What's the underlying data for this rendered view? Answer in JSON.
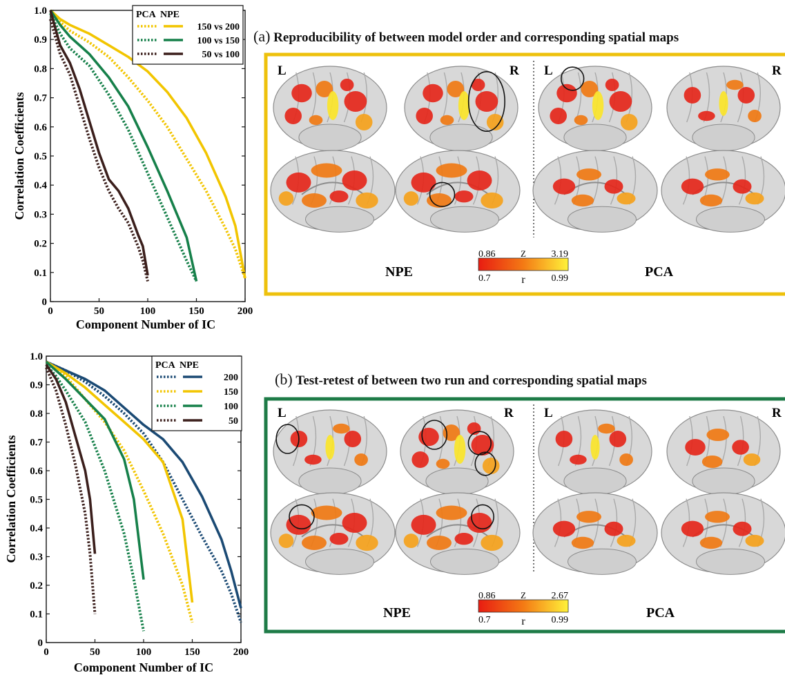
{
  "colors": {
    "yellow": "#f2c500",
    "green": "#16804a",
    "dark": "#3b1f1c",
    "navy": "#1b4a74",
    "frame_a": "#eec10c",
    "frame_b": "#1e7b47",
    "hot_low": "#e81c12",
    "hot_high": "#fff23a"
  },
  "chart_data": [
    {
      "type": "line",
      "xlabel": "Component Number of IC",
      "ylabel": "Correlation Coefficients",
      "xlim": [
        0,
        200
      ],
      "ylim": [
        0,
        1.0
      ],
      "x_ticks": [
        "0",
        "50",
        "100",
        "150",
        "200"
      ],
      "y_ticks": [
        "0",
        "0.1",
        "0.2",
        "0.3",
        "0.4",
        "0.5",
        "0.6",
        "0.7",
        "0.8",
        "0.9",
        "1.0"
      ],
      "legend_headers": [
        "PCA",
        "NPE"
      ],
      "legend_position": "top-right",
      "series": [
        {
          "name": "150 vs 200",
          "method": "NPE",
          "color": "yellow",
          "style": "solid",
          "x": [
            0,
            10,
            20,
            40,
            60,
            80,
            100,
            120,
            140,
            160,
            180,
            190,
            200
          ],
          "y": [
            1.0,
            0.97,
            0.95,
            0.92,
            0.88,
            0.84,
            0.79,
            0.72,
            0.63,
            0.51,
            0.36,
            0.26,
            0.08
          ]
        },
        {
          "name": "150 vs 200",
          "method": "PCA",
          "color": "yellow",
          "style": "dotted",
          "x": [
            0,
            10,
            20,
            40,
            60,
            80,
            100,
            120,
            140,
            160,
            180,
            190,
            200
          ],
          "y": [
            1.0,
            0.96,
            0.93,
            0.89,
            0.84,
            0.77,
            0.69,
            0.6,
            0.49,
            0.38,
            0.25,
            0.18,
            0.08
          ]
        },
        {
          "name": "100 vs 150",
          "method": "NPE",
          "color": "green",
          "style": "solid",
          "x": [
            0,
            10,
            20,
            40,
            60,
            80,
            100,
            120,
            140,
            150
          ],
          "y": [
            1.0,
            0.95,
            0.91,
            0.85,
            0.77,
            0.67,
            0.53,
            0.38,
            0.22,
            0.07
          ]
        },
        {
          "name": "100 vs 150",
          "method": "PCA",
          "color": "green",
          "style": "dotted",
          "x": [
            0,
            10,
            20,
            40,
            60,
            80,
            100,
            120,
            140,
            150
          ],
          "y": [
            0.99,
            0.92,
            0.87,
            0.81,
            0.71,
            0.59,
            0.44,
            0.29,
            0.14,
            0.07
          ]
        },
        {
          "name": "50 vs 100",
          "method": "NPE",
          "color": "dark",
          "style": "solid",
          "x": [
            0,
            5,
            10,
            20,
            30,
            40,
            50,
            60,
            70,
            80,
            90,
            95,
            100
          ],
          "y": [
            1.0,
            0.94,
            0.88,
            0.82,
            0.73,
            0.62,
            0.51,
            0.42,
            0.38,
            0.32,
            0.23,
            0.19,
            0.09
          ]
        },
        {
          "name": "50 vs 100",
          "method": "PCA",
          "color": "dark",
          "style": "dotted",
          "x": [
            0,
            5,
            10,
            20,
            30,
            40,
            50,
            60,
            70,
            80,
            90,
            95,
            100
          ],
          "y": [
            0.97,
            0.91,
            0.85,
            0.78,
            0.67,
            0.56,
            0.46,
            0.38,
            0.32,
            0.27,
            0.19,
            0.14,
            0.07
          ]
        }
      ]
    },
    {
      "type": "line",
      "xlabel": "Component Number of IC",
      "ylabel": "Correlation Coefficients",
      "xlim": [
        0,
        200
      ],
      "ylim": [
        0,
        1.0
      ],
      "x_ticks": [
        "0",
        "50",
        "100",
        "150",
        "200"
      ],
      "y_ticks": [
        "0",
        "0.1",
        "0.2",
        "0.3",
        "0.4",
        "0.5",
        "0.6",
        "0.7",
        "0.8",
        "0.9",
        "1.0"
      ],
      "legend_headers": [
        "PCA",
        "NPE"
      ],
      "legend_position": "top-right",
      "series": [
        {
          "name": "200",
          "method": "NPE",
          "color": "navy",
          "style": "solid",
          "x": [
            0,
            20,
            40,
            60,
            80,
            100,
            120,
            140,
            160,
            180,
            190,
            200
          ],
          "y": [
            0.98,
            0.95,
            0.92,
            0.88,
            0.82,
            0.76,
            0.71,
            0.63,
            0.51,
            0.36,
            0.25,
            0.12
          ]
        },
        {
          "name": "200",
          "method": "PCA",
          "color": "navy",
          "style": "dotted",
          "x": [
            0,
            20,
            40,
            60,
            80,
            100,
            120,
            140,
            160,
            180,
            190,
            200
          ],
          "y": [
            0.98,
            0.95,
            0.91,
            0.86,
            0.8,
            0.73,
            0.63,
            0.5,
            0.37,
            0.25,
            0.17,
            0.07
          ]
        },
        {
          "name": "150",
          "method": "NPE",
          "color": "yellow",
          "style": "solid",
          "x": [
            0,
            20,
            40,
            60,
            80,
            100,
            120,
            140,
            150
          ],
          "y": [
            0.98,
            0.94,
            0.89,
            0.83,
            0.77,
            0.71,
            0.63,
            0.43,
            0.14
          ]
        },
        {
          "name": "150",
          "method": "PCA",
          "color": "yellow",
          "style": "dotted",
          "x": [
            0,
            20,
            40,
            60,
            80,
            100,
            120,
            140,
            150
          ],
          "y": [
            0.98,
            0.93,
            0.85,
            0.77,
            0.67,
            0.53,
            0.38,
            0.2,
            0.07
          ]
        },
        {
          "name": "100",
          "method": "NPE",
          "color": "green",
          "style": "solid",
          "x": [
            0,
            10,
            20,
            40,
            60,
            80,
            90,
            100
          ],
          "y": [
            0.98,
            0.95,
            0.92,
            0.85,
            0.78,
            0.64,
            0.5,
            0.22
          ]
        },
        {
          "name": "100",
          "method": "PCA",
          "color": "green",
          "style": "dotted",
          "x": [
            0,
            10,
            20,
            40,
            60,
            80,
            90,
            100
          ],
          "y": [
            0.97,
            0.93,
            0.88,
            0.77,
            0.6,
            0.38,
            0.22,
            0.04
          ]
        },
        {
          "name": "50",
          "method": "NPE",
          "color": "dark",
          "style": "solid",
          "x": [
            0,
            10,
            20,
            30,
            40,
            45,
            50
          ],
          "y": [
            0.97,
            0.92,
            0.84,
            0.72,
            0.6,
            0.5,
            0.31
          ]
        },
        {
          "name": "50",
          "method": "PCA",
          "color": "dark",
          "style": "dotted",
          "x": [
            0,
            10,
            20,
            30,
            40,
            45,
            50
          ],
          "y": [
            0.96,
            0.88,
            0.76,
            0.62,
            0.45,
            0.31,
            0.1
          ]
        }
      ]
    }
  ],
  "panel_a": {
    "tag": "(a)",
    "title": "Reproducibility of between model order and corresponding spatial maps",
    "left_label": "L",
    "right_label": "R",
    "left_label_2": "L",
    "right_label_2": "R",
    "method_left": "NPE",
    "method_right": "PCA",
    "colorbar": {
      "z_label": "Z",
      "r_label": "r",
      "z_min": "0.86",
      "z_max": "3.19",
      "r_min": "0.7",
      "r_max": "0.99"
    }
  },
  "panel_b": {
    "tag": "(b)",
    "title": "Test-retest of between two run and corresponding spatial maps",
    "left_label": "L",
    "right_label": "R",
    "left_label_2": "L",
    "right_label_2": "R",
    "method_left": "NPE",
    "method_right": "PCA",
    "colorbar": {
      "z_label": "Z",
      "r_label": "r",
      "z_min": "0.86",
      "z_max": "2.67",
      "r_min": "0.7",
      "r_max": "0.99"
    }
  }
}
